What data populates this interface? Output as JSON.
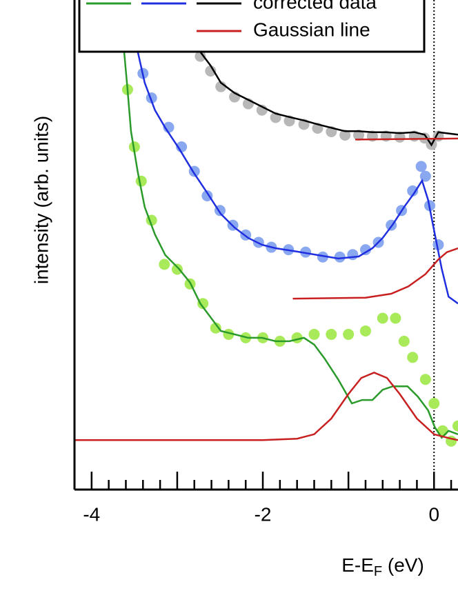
{
  "chart_data": {
    "type": "line",
    "y_label": "intensity (arb. units)",
    "x_label": [
      "E-E",
      "F",
      " (eV)"
    ],
    "xlim": [
      -4.2,
      0.28
    ],
    "ylim": [
      0,
      100
    ],
    "xticks": [
      -4,
      -2,
      0
    ],
    "x_minor_ticks": [
      -4.0,
      -3.8,
      -3.6,
      -3.4,
      -3.2,
      -3.0,
      -2.8,
      -2.6,
      -2.4,
      -2.2,
      -2.0,
      -1.8,
      -1.6,
      -1.4,
      -1.2,
      -1.0,
      -0.8,
      -0.6,
      -0.4,
      -0.2,
      0.0,
      0.2
    ],
    "fermi_line": 0,
    "legend": [
      {
        "label": "corrected data",
        "colors": [
          "#2a9a2a",
          "#1f2fe0",
          "#000000"
        ]
      },
      {
        "label": "Gaussian line",
        "colors": [
          "#c82020"
        ]
      }
    ],
    "series": [
      {
        "style": "dots",
        "color": "#b8b8b8",
        "x": [
          -2.73,
          -2.61,
          -2.49,
          -2.33,
          -2.17,
          -2.01,
          -1.85,
          -1.69,
          -1.52,
          -1.36,
          -1.2,
          -1.04,
          -0.88,
          -0.72,
          -0.56,
          -0.4,
          -0.23,
          -0.11,
          -0.03,
          0.05
        ],
        "values": [
          88.5,
          85.5,
          82.3,
          80.2,
          78.8,
          77.5,
          76.0,
          75.3,
          74.6,
          73.8,
          73.1,
          72.4,
          72.4,
          72.2,
          72.2,
          72.0,
          72.2,
          71.8,
          70.5,
          72.2
        ]
      },
      {
        "style": "line",
        "color": "#000000",
        "x": [
          -2.73,
          -2.61,
          -2.49,
          -2.33,
          -2.17,
          -2.01,
          -1.85,
          -1.69,
          -1.52,
          -1.36,
          -1.2,
          -1.04,
          -0.88,
          -0.72,
          -0.56,
          -0.4,
          -0.23,
          -0.11,
          -0.03,
          0.05,
          0.28
        ],
        "values": [
          89.4,
          86.6,
          83.1,
          81.0,
          79.6,
          78.2,
          76.8,
          76.1,
          75.4,
          74.6,
          73.9,
          73.2,
          73.2,
          73.0,
          73.0,
          72.8,
          73.0,
          72.5,
          70.4,
          73.0,
          72.5
        ]
      },
      {
        "style": "dots",
        "color": "#8aa8f0",
        "x": [
          -3.4,
          -3.3,
          -3.1,
          -2.95,
          -2.8,
          -2.65,
          -2.5,
          -2.35,
          -2.2,
          -2.05,
          -1.9,
          -1.7,
          -1.5,
          -1.3,
          -1.1,
          -0.95,
          -0.8,
          -0.65,
          -0.5,
          -0.38,
          -0.25,
          -0.15,
          -0.1,
          -0.05,
          0.05
        ],
        "values": [
          85,
          80,
          74,
          70,
          65,
          60,
          57,
          54,
          52,
          50.5,
          49.5,
          49,
          48.5,
          47.5,
          47.5,
          48,
          49,
          50.5,
          54,
          57,
          61,
          66,
          64,
          58,
          50
        ]
      },
      {
        "style": "line",
        "color": "#1f2fe0",
        "x": [
          -3.46,
          -3.38,
          -3.26,
          -3.14,
          -2.98,
          -2.81,
          -2.65,
          -2.49,
          -2.33,
          -2.17,
          -2.01,
          -1.85,
          -1.6,
          -1.36,
          -1.12,
          -0.88,
          -0.72,
          -0.6,
          -0.48,
          -0.35,
          -0.23,
          -0.14,
          -0.07,
          0.01,
          0.09,
          0.17,
          0.28
        ],
        "values": [
          89.4,
          83.1,
          77.5,
          73.9,
          69.7,
          64.8,
          60.6,
          56.3,
          53.5,
          51.4,
          50.0,
          49.3,
          48.6,
          47.9,
          47.2,
          47.6,
          49.3,
          51.4,
          54.2,
          57.7,
          60.6,
          63.1,
          59.2,
          52.1,
          45.1,
          39.4,
          38.0
        ]
      },
      {
        "style": "dots",
        "color": "#a8ea5a",
        "x": [
          -3.58,
          -3.5,
          -3.42,
          -3.3,
          -3.15,
          -3.0,
          -2.85,
          -2.7,
          -2.55,
          -2.4,
          -2.2,
          -2.0,
          -1.8,
          -1.6,
          -1.4,
          -1.2,
          -1.0,
          -0.8,
          -0.6,
          -0.45,
          -0.35,
          -0.25,
          -0.1,
          0.0,
          0.1,
          0.2,
          0.28
        ],
        "values": [
          81.7,
          70,
          63,
          55,
          46,
          45,
          42,
          38,
          33,
          31.7,
          31,
          31,
          30.3,
          31,
          31.7,
          31.7,
          31.7,
          32.4,
          35,
          35,
          30.3,
          27,
          22.5,
          17.6,
          12,
          9.9,
          13
        ]
      },
      {
        "style": "line",
        "color": "#2a9a2a",
        "x": [
          -3.62,
          -3.58,
          -3.54,
          -3.46,
          -3.38,
          -3.26,
          -3.14,
          -2.98,
          -2.85,
          -2.73,
          -2.61,
          -2.49,
          -2.33,
          -2.17,
          -2.01,
          -1.85,
          -1.69,
          -1.52,
          -1.4,
          -1.28,
          -1.12,
          -0.96,
          -0.84,
          -0.72,
          -0.6,
          -0.48,
          -0.31,
          -0.19,
          -0.07,
          0.01,
          0.09,
          0.17,
          0.28
        ],
        "values": [
          89.4,
          81.7,
          73.2,
          64.8,
          57.7,
          52.1,
          47.9,
          45.1,
          42.3,
          38.0,
          35.2,
          32.4,
          31.7,
          31.0,
          31.0,
          30.3,
          30.3,
          31.0,
          29.6,
          26.8,
          22.5,
          17.6,
          18.3,
          18.3,
          20.4,
          21.1,
          21.1,
          19.0,
          16.2,
          12.7,
          10.6,
          12.0,
          11.3
        ]
      },
      {
        "style": "line",
        "color": "#c82020",
        "x": [
          -4.2,
          -2.0,
          -1.6,
          -1.4,
          -1.2,
          -1.0,
          -0.85,
          -0.7,
          -0.55,
          -0.4,
          -0.2,
          0.0,
          0.2,
          0.28
        ],
        "values": [
          10.1,
          10.1,
          10.4,
          11.3,
          14.5,
          19.5,
          22.8,
          23.9,
          22.8,
          19.5,
          14.5,
          11.3,
          10.4,
          10.1
        ]
      },
      {
        "style": "line",
        "color": "#c82020",
        "x": [
          -1.65,
          -0.8,
          -0.5,
          -0.3,
          -0.1,
          0.05,
          0.15,
          0.28
        ],
        "values": [
          39.0,
          39.2,
          40,
          41.5,
          44,
          47,
          48.5,
          49.3
        ]
      },
      {
        "style": "line",
        "color": "#c82020",
        "x": [
          -0.92,
          0.28
        ],
        "values": [
          71.5,
          71.7
        ]
      }
    ]
  }
}
